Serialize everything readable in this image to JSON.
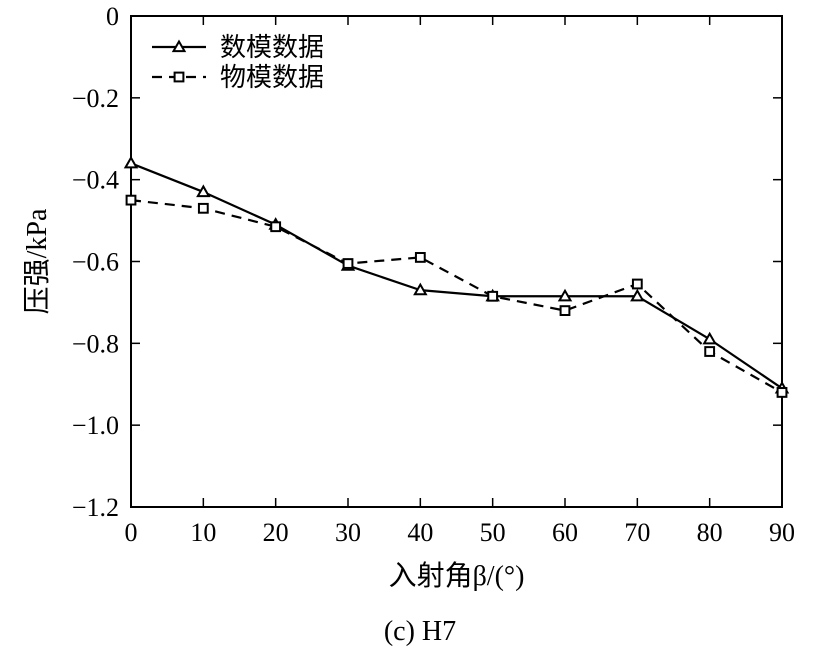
{
  "chart_data": {
    "type": "line",
    "x": [
      0,
      10,
      20,
      30,
      40,
      50,
      60,
      70,
      80,
      90
    ],
    "series": [
      {
        "name": "数模数据",
        "values": [
          -0.36,
          -0.43,
          -0.51,
          -0.61,
          -0.67,
          -0.685,
          -0.685,
          -0.685,
          -0.79,
          -0.91
        ],
        "marker": "triangle",
        "dash": "solid"
      },
      {
        "name": "物模数据",
        "x": [
          0,
          10,
          20,
          30,
          40,
          50,
          60,
          70,
          80,
          90
        ],
        "values": [
          -0.45,
          -0.47,
          -0.515,
          -0.605,
          -0.59,
          -0.685,
          -0.72,
          -0.655,
          -0.82,
          -0.92
        ],
        "marker": "square",
        "dash": "dashed"
      }
    ],
    "xlabel": "入射角β/(°)",
    "ylabel": "压强/kPa",
    "xlim": [
      0,
      90
    ],
    "ylim": [
      -1.2,
      0
    ],
    "xticks": [
      0,
      10,
      20,
      30,
      40,
      50,
      60,
      70,
      80,
      90
    ],
    "yticks": [
      0,
      -0.2,
      -0.4,
      -0.6,
      -0.8,
      -1.0,
      -1.2
    ],
    "ytick_labels": [
      "0",
      "−0.2",
      "−0.4",
      "−0.6",
      "−0.8",
      "−1.0",
      "−1.2"
    ],
    "xtick_labels": [
      "0",
      "10",
      "20",
      "30",
      "40",
      "50",
      "60",
      "70",
      "80",
      "90"
    ],
    "legend_position": "top-left",
    "grid": false,
    "caption": "(c) H7"
  }
}
